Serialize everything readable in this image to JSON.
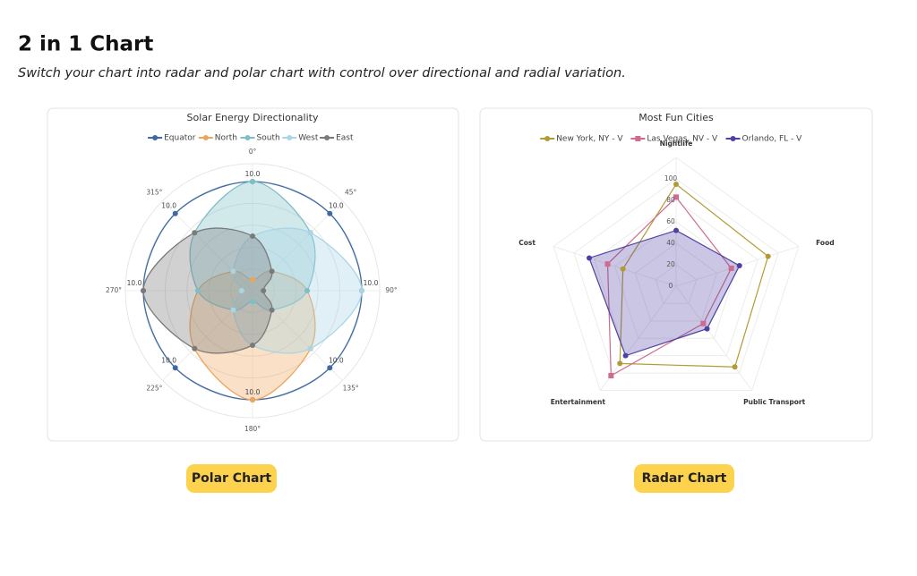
{
  "header": {
    "title": "2 in 1 Chart",
    "subtitle": "Switch your chart into radar and polar chart with control over directional and radial variation."
  },
  "buttons": [
    "Polar Chart",
    "Radar Chart"
  ],
  "chart_data": [
    {
      "type": "polar",
      "title": "Solar Energy Directionality",
      "categories": [
        "0°",
        "45°",
        "90°",
        "135°",
        "180°",
        "225°",
        "270°",
        "315°"
      ],
      "ylim": [
        0,
        10
      ],
      "series": [
        {
          "name": "Equator",
          "color": "#3d6aa3",
          "fill": false,
          "values": [
            10,
            10,
            10,
            10,
            10,
            10,
            10,
            10
          ],
          "value_labels": [
            "10.0",
            "10.0",
            "10.0",
            "10.0",
            "10.0",
            "10.0",
            "10.0",
            "10.0"
          ]
        },
        {
          "name": "North",
          "color": "#eda55c",
          "fill": true,
          "values": [
            1,
            2.5,
            5,
            7.5,
            10,
            7.5,
            5,
            2.5
          ]
        },
        {
          "name": "South",
          "color": "#7dbfc8",
          "fill": true,
          "values": [
            10,
            7.5,
            5,
            2.5,
            1,
            2.5,
            5,
            7.5
          ]
        },
        {
          "name": "West",
          "color": "#a9d5e5",
          "fill": true,
          "values": [
            5,
            7.5,
            10,
            7.5,
            5,
            2.5,
            1,
            2.5
          ]
        },
        {
          "name": "East",
          "color": "#7a7a7a",
          "fill": true,
          "values": [
            5,
            2.5,
            1,
            2.5,
            5,
            7.5,
            10,
            7.5
          ]
        }
      ]
    },
    {
      "type": "radar",
      "title": "Most Fun Cities",
      "categories": [
        "Nightlife",
        "Food",
        "Public Transport",
        "Entertainment",
        "Cost"
      ],
      "ylim": [
        0,
        120
      ],
      "yticks": [
        0,
        20,
        40,
        60,
        80,
        100
      ],
      "series": [
        {
          "name": "New York, NY - V",
          "color": "#b39b34",
          "marker": "circle",
          "fill": false,
          "values": [
            95,
            90,
            93,
            89,
            52
          ]
        },
        {
          "name": "Las Vegas, NV - V",
          "color": "#cf6b90",
          "marker": "square",
          "fill": false,
          "values": [
            83,
            54,
            43,
            103,
            67
          ]
        },
        {
          "name": "Orlando, FL - V",
          "color": "#4f41a3",
          "marker": "circle",
          "fill": true,
          "values": [
            52,
            62,
            49,
            80,
            85
          ]
        }
      ]
    }
  ]
}
